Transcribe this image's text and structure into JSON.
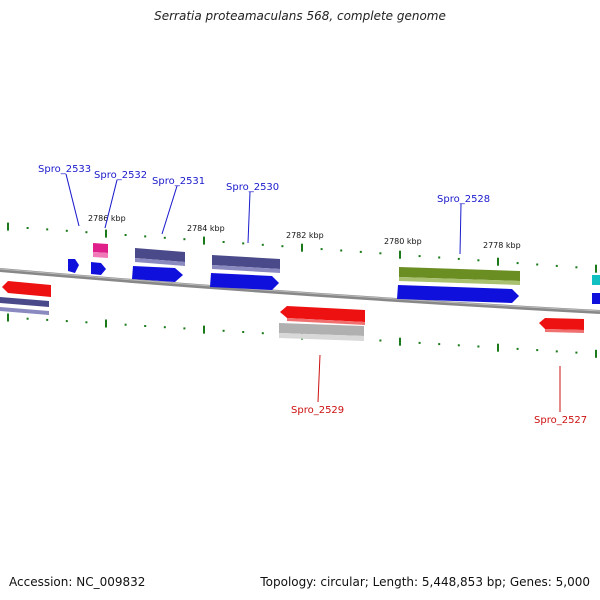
{
  "title": "Serratia proteamaculans 568, complete genome",
  "footer": {
    "accession": "Accession: NC_009832",
    "topology": "Topology: circular; Length: 5,448,853 bp; Genes: 5,000"
  },
  "ticks": [
    "2786 kbp",
    "2784 kbp",
    "2782 kbp",
    "2780 kbp",
    "2778 kbp"
  ],
  "gene_labels": [
    {
      "name": "Spro_2533",
      "strand": "forward"
    },
    {
      "name": "Spro_2532",
      "strand": "forward"
    },
    {
      "name": "Spro_2531",
      "strand": "forward"
    },
    {
      "name": "Spro_2530",
      "strand": "forward"
    },
    {
      "name": "Spro_2528",
      "strand": "forward"
    },
    {
      "name": "Spro_2529",
      "strand": "reverse"
    },
    {
      "name": "Spro_2527",
      "strand": "reverse"
    }
  ],
  "colors": {
    "forward_label": "#1a1acc",
    "reverse_label": "#cc1111",
    "blue_gene": "#1010dd",
    "slate_gene": "#4a4a8a",
    "red_gene": "#ee1111",
    "green_gene": "#6b8e23",
    "pink_gene": "#e0208a",
    "cyan_gene": "#11c0c0",
    "gray_gene": "#b0b0b0",
    "tick": "#1a7a1a",
    "backbone": "#888888"
  }
}
